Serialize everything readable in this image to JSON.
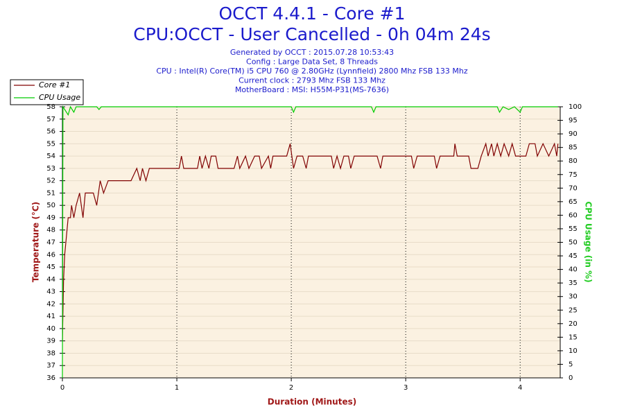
{
  "chart_data": {
    "type": "line",
    "title": "OCCT 4.4.1 - Core #1",
    "subtitle": "CPU:OCCT - User Cancelled - 0h 04m 24s",
    "info": [
      "Generated by OCCT : 2015.07.28 10:53:43",
      "Config : Large Data Set, 8 Threads",
      "CPU : Intel(R) Core(TM) i5 CPU 760 @ 2.80GHz (Lynnfield) 2800 Mhz FSB 133 Mhz",
      "Current clock : 2793 Mhz FSB 133 Mhz",
      "MotherBoard : MSI: H55M-P31(MS-7636)"
    ],
    "x_label": "Duration (Minutes)",
    "y_label": "Temperature (°C)",
    "y2_label": "CPU Usage (in %)",
    "xlim": [
      0,
      4.35
    ],
    "xticks": [
      0,
      1,
      2,
      3,
      4
    ],
    "ylim": [
      36,
      58
    ],
    "yticks": [
      36,
      37,
      38,
      39,
      40,
      41,
      42,
      43,
      44,
      45,
      46,
      47,
      48,
      49,
      50,
      51,
      52,
      53,
      54,
      55,
      56,
      57,
      58
    ],
    "y2lim": [
      0,
      100
    ],
    "y2ticks": [
      0,
      5,
      10,
      15,
      20,
      25,
      30,
      35,
      40,
      45,
      50,
      55,
      60,
      65,
      70,
      75,
      80,
      85,
      90,
      95,
      100
    ],
    "grid": true,
    "legend": "upper-left",
    "series": [
      {
        "name": "Core #1",
        "color": "#800000",
        "x": [
          0,
          0.01,
          0.02,
          0.03,
          0.05,
          0.07,
          0.08,
          0.1,
          0.12,
          0.15,
          0.18,
          0.2,
          0.27,
          0.3,
          0.33,
          0.36,
          0.4,
          0.6,
          0.65,
          0.68,
          0.7,
          0.73,
          0.76,
          1.02,
          1.04,
          1.06,
          1.18,
          1.2,
          1.22,
          1.25,
          1.28,
          1.3,
          1.34,
          1.36,
          1.5,
          1.53,
          1.55,
          1.6,
          1.63,
          1.68,
          1.72,
          1.74,
          1.8,
          1.82,
          1.84,
          1.96,
          1.99,
          2.02,
          2.05,
          2.1,
          2.13,
          2.15,
          2.35,
          2.37,
          2.4,
          2.43,
          2.46,
          2.5,
          2.52,
          2.55,
          2.75,
          2.78,
          2.8,
          3.05,
          3.07,
          3.1,
          3.25,
          3.27,
          3.3,
          3.42,
          3.43,
          3.45,
          3.55,
          3.57,
          3.63,
          3.66,
          3.7,
          3.72,
          3.75,
          3.77,
          3.8,
          3.83,
          3.86,
          3.9,
          3.93,
          3.96,
          4.05,
          4.08,
          4.13,
          4.15,
          4.2,
          4.25,
          4.3,
          4.32,
          4.33
        ],
        "values": [
          39,
          44,
          46,
          47,
          49,
          49,
          50,
          49,
          50,
          51,
          49,
          51,
          51,
          50,
          52,
          51,
          52,
          52,
          53,
          52,
          53,
          52,
          53,
          53,
          54,
          53,
          53,
          54,
          53,
          54,
          53,
          54,
          54,
          53,
          53,
          54,
          53,
          54,
          53,
          54,
          54,
          53,
          54,
          53,
          54,
          54,
          55,
          53,
          54,
          54,
          53,
          54,
          54,
          53,
          54,
          53,
          54,
          54,
          53,
          54,
          54,
          53,
          54,
          54,
          53,
          54,
          54,
          53,
          54,
          54,
          55,
          54,
          54,
          53,
          53,
          54,
          55,
          54,
          55,
          54,
          55,
          54,
          55,
          54,
          55,
          54,
          54,
          55,
          55,
          54,
          55,
          54,
          55,
          54,
          55
        ]
      },
      {
        "name": "CPU Usage",
        "color": "#00cc00",
        "axis": "y2",
        "x": [
          0,
          0.005,
          0.05,
          0.07,
          0.1,
          0.12,
          0.3,
          0.32,
          0.34,
          2.0,
          2.02,
          2.04,
          2.7,
          2.72,
          2.74,
          3.8,
          3.82,
          3.85,
          3.9,
          3.95,
          4.0,
          4.02,
          4.33
        ],
        "values": [
          0,
          100,
          97,
          100,
          98,
          100,
          100,
          99,
          100,
          100,
          98,
          100,
          100,
          98,
          100,
          100,
          98,
          100,
          99,
          100,
          98,
          100,
          100
        ]
      }
    ]
  }
}
